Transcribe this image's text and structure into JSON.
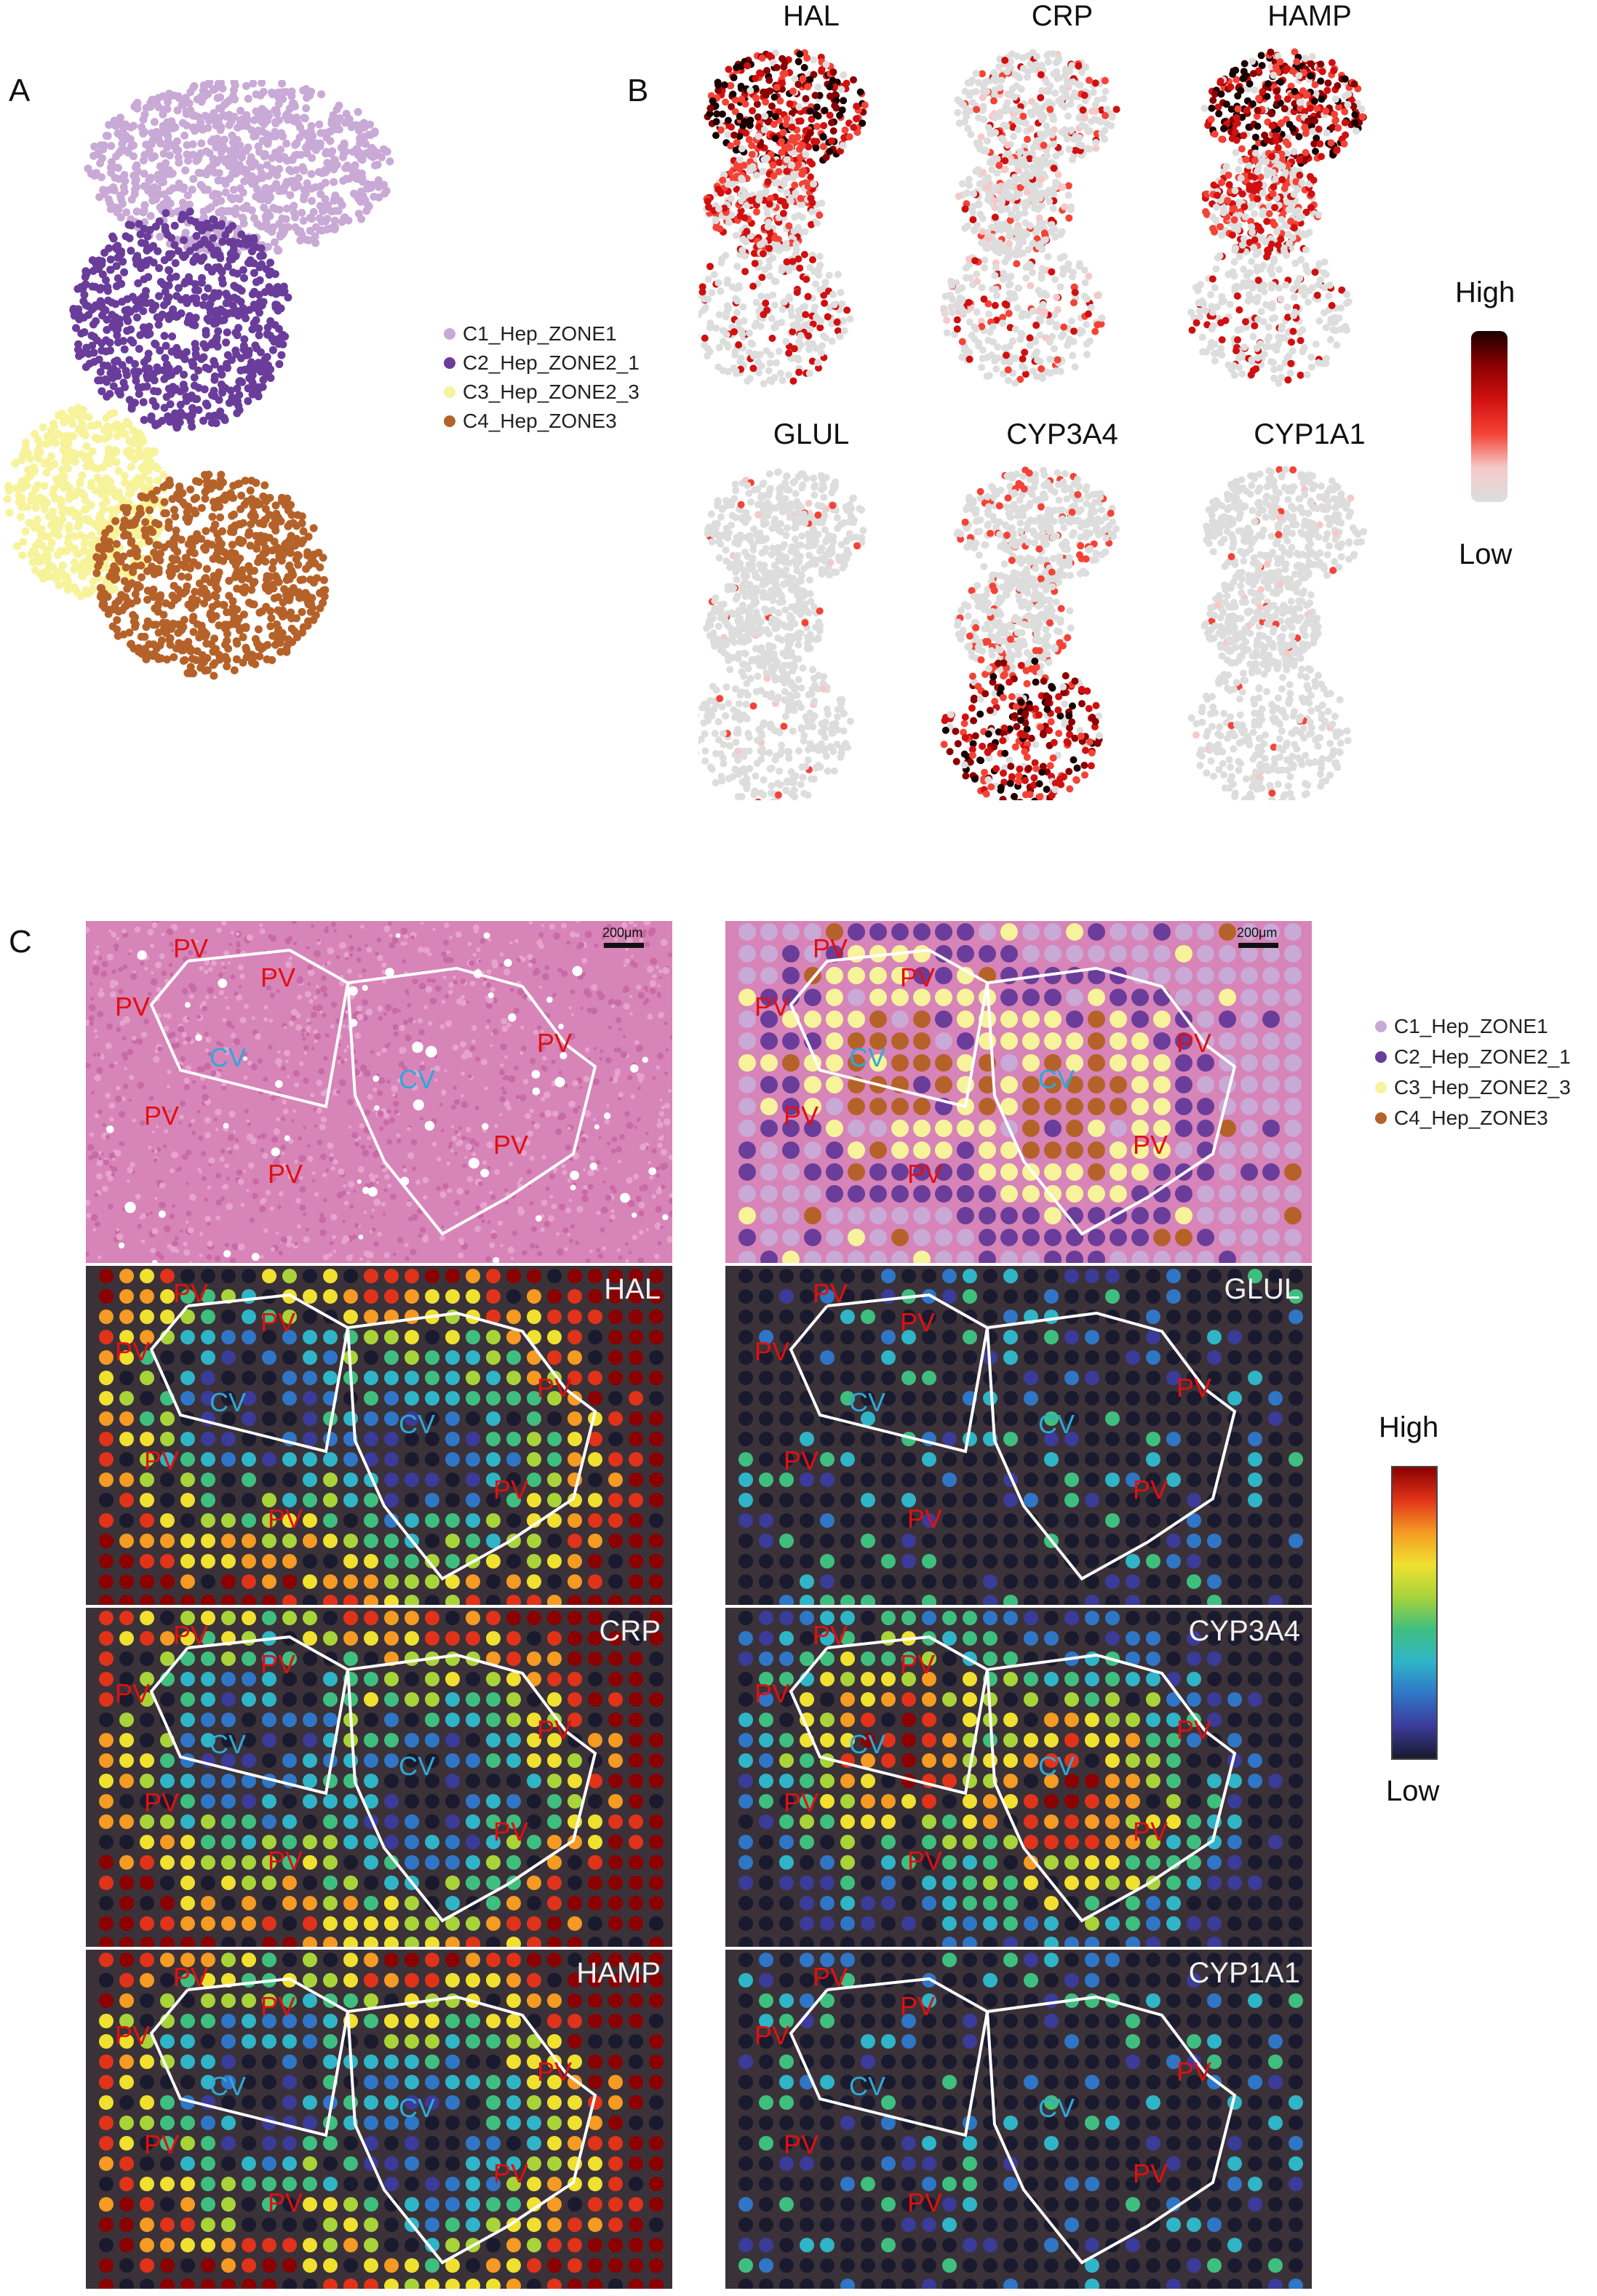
{
  "panels": {
    "a": "A",
    "b": "B",
    "c": "C"
  },
  "clusters": [
    {
      "label": "C1_Hep_ZONE1",
      "color": "#c9a9d6"
    },
    {
      "label": "C2_Hep_ZONE2_1",
      "color": "#6a3d9a"
    },
    {
      "label": "C3_Hep_ZONE2_3",
      "color": "#f7f39a"
    },
    {
      "label": "C4_Hep_ZONE3",
      "color": "#b5622a"
    }
  ],
  "panel_b": {
    "genes": [
      "HAL",
      "CRP",
      "HAMP",
      "GLUL",
      "CYP3A4",
      "CYP1A1"
    ],
    "scale_high": "High",
    "scale_low": "Low",
    "scale_colors": [
      "#dddddd",
      "#f6c9c9",
      "#f44336",
      "#d01010",
      "#8b0000",
      "#1a0000"
    ]
  },
  "panel_c": {
    "scale_high": "High",
    "scale_low": "Low",
    "scale_colors": [
      "#1a1a2e",
      "#3b3b9a",
      "#2f76c7",
      "#2fb5c7",
      "#3fbf7f",
      "#a8d43a",
      "#f0e030",
      "#f59a23",
      "#e0331a",
      "#8b0000"
    ],
    "he_scale_bar": "200μm",
    "he_scale_bar_2": "200μm",
    "gene_tiles_left": [
      "HAL",
      "CRP",
      "HAMP"
    ],
    "gene_tiles_right": [
      "GLUL",
      "CYP3A4",
      "CYP1A1"
    ],
    "zone_pv": "PV",
    "zone_cv": "CV"
  }
}
